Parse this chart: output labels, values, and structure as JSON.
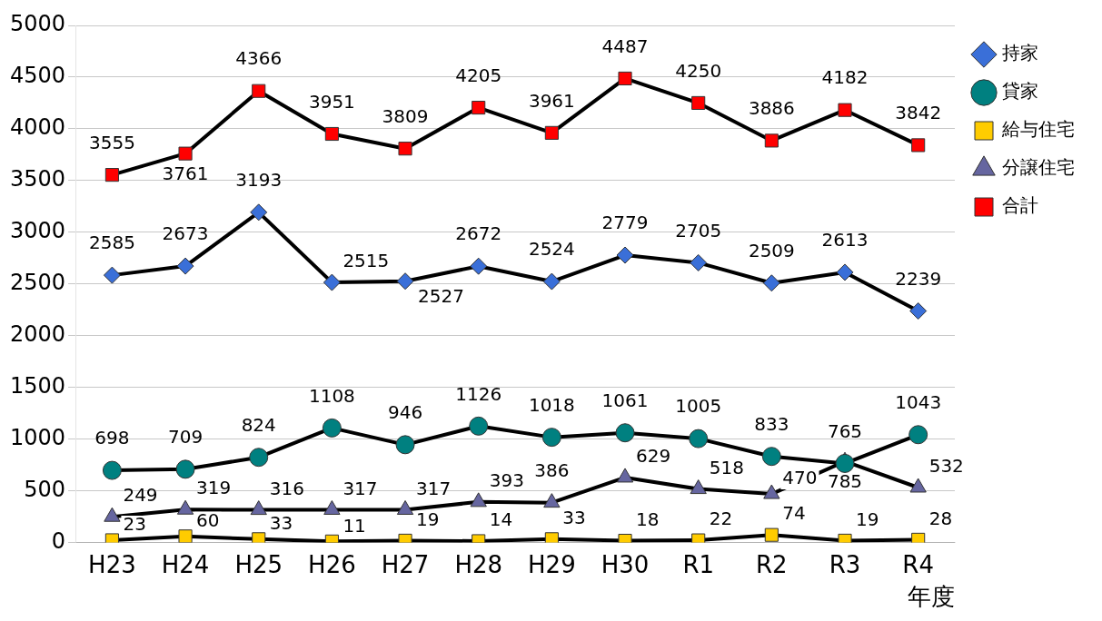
{
  "chart_data": {
    "type": "line",
    "xlabel": "年度",
    "categories": [
      "H23",
      "H24",
      "H25",
      "H26",
      "H27",
      "H28",
      "H29",
      "H30",
      "R1",
      "R2",
      "R3",
      "R4"
    ],
    "series": [
      {
        "name": "持家",
        "color": "#3a6fd8",
        "marker": "diamond",
        "values": [
          2585,
          2673,
          3193,
          2515,
          2527,
          2672,
          2524,
          2779,
          2705,
          2509,
          2613,
          2239
        ]
      },
      {
        "name": "貸家",
        "color": "#008080",
        "marker": "circle",
        "values": [
          698,
          709,
          824,
          1108,
          946,
          1126,
          1018,
          1061,
          1005,
          833,
          765,
          1043
        ]
      },
      {
        "name": "給与住宅",
        "color": "#ffcc00",
        "marker": "square",
        "values": [
          23,
          60,
          33,
          11,
          19,
          14,
          33,
          18,
          22,
          74,
          19,
          28
        ]
      },
      {
        "name": "分譲住宅",
        "color": "#6666a0",
        "marker": "triangle",
        "values": [
          249,
          319,
          316,
          317,
          317,
          393,
          386,
          629,
          518,
          470,
          785,
          532
        ]
      },
      {
        "name": "合計",
        "color": "#ff0000",
        "marker": "square",
        "values": [
          3555,
          3761,
          4366,
          3951,
          3809,
          4205,
          3961,
          4487,
          4250,
          3886,
          4182,
          3842
        ]
      }
    ],
    "ylim": [
      0,
      5000
    ],
    "yticks": [
      0,
      500,
      1000,
      1500,
      2000,
      2500,
      3000,
      3500,
      4000,
      4500,
      5000
    ],
    "grid": "y",
    "legend": "right",
    "data_labels": true,
    "line_style": "solid"
  }
}
